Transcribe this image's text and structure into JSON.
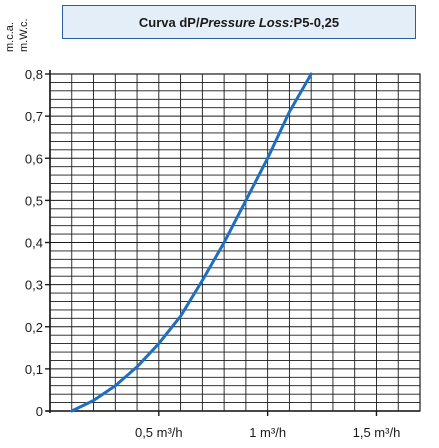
{
  "units": {
    "line1": "m.c.a.",
    "line2": "m.W.c."
  },
  "title": {
    "prefix": "Curva dP/",
    "italic": "Pressure Loss:",
    "suffix": " P5-0,25"
  },
  "chart_data": {
    "type": "line",
    "title": "Curva dP/Pressure Loss: P5-0,25",
    "xlabel": "",
    "ylabel": "m.c.a. / m.W.c.",
    "xlim": [
      0,
      1.7
    ],
    "ylim": [
      0,
      0.8
    ],
    "grid": true,
    "x_ticks": [
      {
        "value": 0.5,
        "label": "0,5 m³/h"
      },
      {
        "value": 1.0,
        "label": "1 m³/h"
      },
      {
        "value": 1.5,
        "label": "1,5 m³/h"
      }
    ],
    "y_ticks": [
      {
        "value": 0,
        "label": "0"
      },
      {
        "value": 0.1,
        "label": "0,1"
      },
      {
        "value": 0.2,
        "label": "0,2"
      },
      {
        "value": 0.3,
        "label": "0,3"
      },
      {
        "value": 0.4,
        "label": "0,4"
      },
      {
        "value": 0.5,
        "label": "0,5"
      },
      {
        "value": 0.6,
        "label": "0,6"
      },
      {
        "value": 0.7,
        "label": "0,7"
      },
      {
        "value": 0.8,
        "label": "0,8"
      }
    ],
    "series": [
      {
        "color": "#1f6fc0",
        "x": [
          0.1,
          0.2,
          0.3,
          0.4,
          0.5,
          0.6,
          0.7,
          0.8,
          0.9,
          1.0,
          1.1,
          1.2
        ],
        "y": [
          0.0,
          0.025,
          0.06,
          0.105,
          0.16,
          0.225,
          0.31,
          0.4,
          0.5,
          0.6,
          0.71,
          0.8
        ]
      }
    ]
  },
  "colors": {
    "grid": "#1a1a1a",
    "axis": "#1a1a1a",
    "title_bg": "#e4eef9",
    "title_border": "#2a5f9e"
  }
}
